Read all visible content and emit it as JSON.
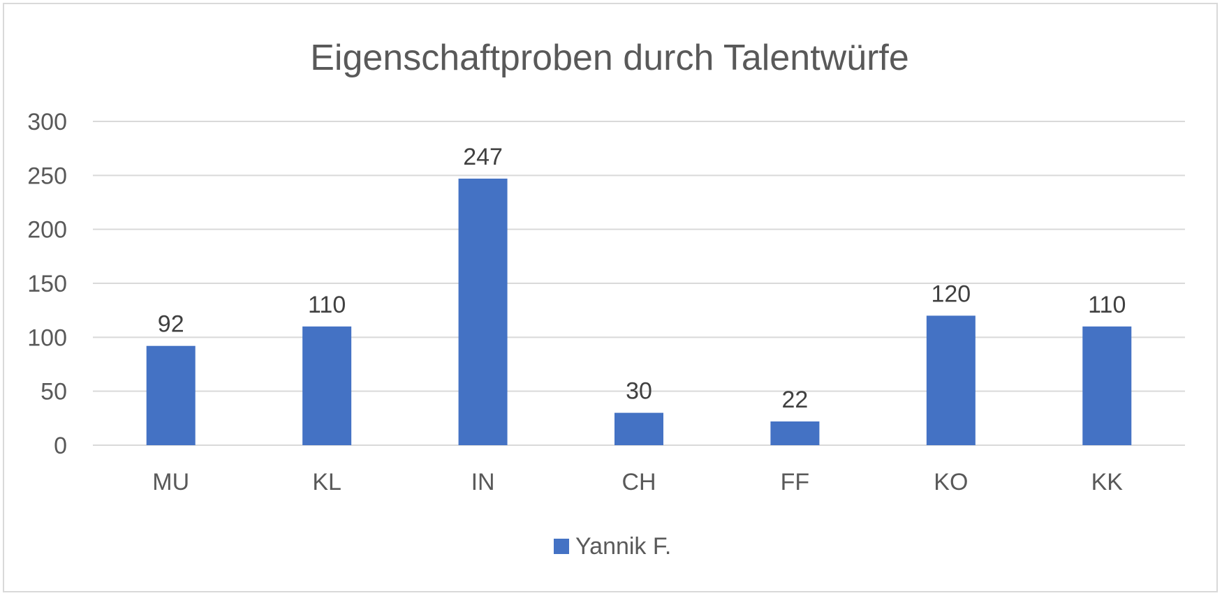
{
  "chart_data": {
    "type": "bar",
    "title": "Eigenschaftproben durch Talentwürfe",
    "xlabel": "",
    "ylabel": "",
    "categories": [
      "MU",
      "KL",
      "IN",
      "CH",
      "FF",
      "KO",
      "KK"
    ],
    "series": [
      {
        "name": "Yannik F.",
        "values": [
          92,
          110,
          247,
          30,
          22,
          120,
          110
        ],
        "color": "#4472C4"
      }
    ],
    "ylim": [
      0,
      300
    ],
    "yticks": [
      0,
      50,
      100,
      150,
      200,
      250,
      300
    ],
    "grid": true,
    "legend_position": "bottom",
    "data_labels": true
  }
}
